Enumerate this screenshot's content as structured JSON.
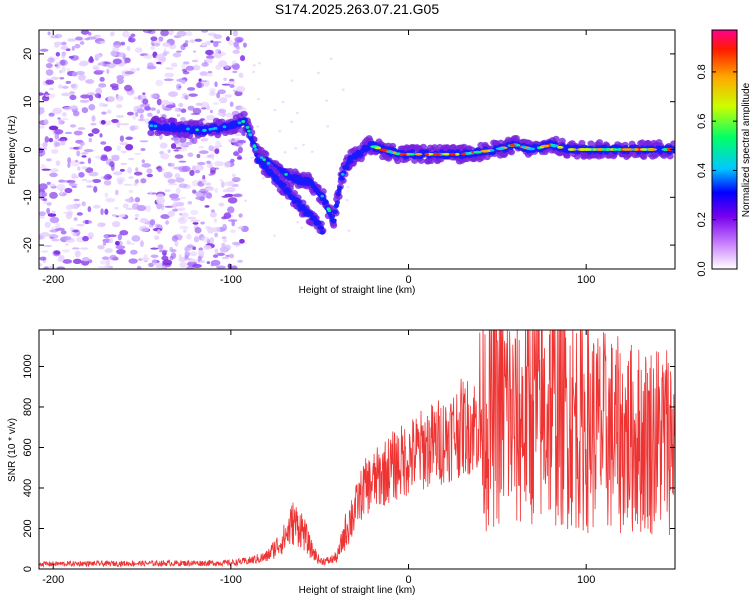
{
  "title": "S174.2025.263.07.21.G05",
  "chart_data": [
    {
      "type": "heatmap",
      "xlabel": "Height of straight line (km)",
      "ylabel": "Frequency (Hz)",
      "xlim": [
        -208,
        150
      ],
      "ylim": [
        -25,
        25
      ],
      "xticks": [
        -200,
        -100,
        0,
        100
      ],
      "yticks": [
        -20,
        -10,
        0,
        10,
        20
      ],
      "colorbar": {
        "label": "Normalized spectral amplitude",
        "range": [
          0,
          0.97
        ],
        "ticks": [
          0.0,
          0.2,
          0.4,
          0.6,
          0.8
        ]
      },
      "ridge": {
        "x": [
          -145,
          -130,
          -115,
          -100,
          -92,
          -85,
          -75,
          -65,
          -55,
          -48,
          -42,
          -38,
          -33,
          -28,
          -22,
          -15,
          -5,
          10,
          30,
          50,
          60,
          70,
          80,
          90,
          100,
          120,
          150
        ],
        "freq": [
          5,
          4.5,
          4,
          5,
          6,
          -1,
          -4,
          -6,
          -7,
          -10,
          -15,
          -6,
          -2,
          -1,
          1,
          0,
          -1,
          -1,
          -1,
          0,
          1,
          0,
          1,
          0,
          0,
          0,
          0
        ],
        "secondary_branch": {
          "x": [
            -85,
            -75,
            -65,
            -58,
            -52,
            -48
          ],
          "freq": [
            -2,
            -6,
            -10,
            -13,
            -15,
            -17
          ]
        }
      },
      "noise_region_x": [
        -208,
        -92
      ]
    },
    {
      "type": "line",
      "xlabel": "Height of straight line (km)",
      "ylabel": "SNR (10 * v/v)",
      "xlim": [
        -208,
        150
      ],
      "ylim": [
        0,
        1180
      ],
      "xticks": [
        -200,
        -100,
        0,
        100
      ],
      "yticks": [
        0,
        200,
        400,
        600,
        800,
        1000
      ],
      "color": "#ee3333",
      "envelope": {
        "x": [
          -208,
          -100,
          -90,
          -80,
          -70,
          -65,
          -60,
          -55,
          -50,
          -45,
          -40,
          -35,
          -30,
          -25,
          -20,
          -10,
          0,
          10,
          20,
          30,
          40,
          50,
          55,
          60,
          65,
          70,
          75,
          80,
          85,
          90,
          100,
          110,
          120,
          130,
          140,
          150
        ],
        "y": [
          25,
          30,
          40,
          60,
          150,
          230,
          200,
          100,
          40,
          40,
          60,
          200,
          300,
          400,
          430,
          500,
          550,
          600,
          640,
          700,
          720,
          780,
          800,
          700,
          750,
          820,
          750,
          800,
          780,
          760,
          700,
          680,
          650,
          640,
          650,
          660
        ]
      }
    }
  ]
}
